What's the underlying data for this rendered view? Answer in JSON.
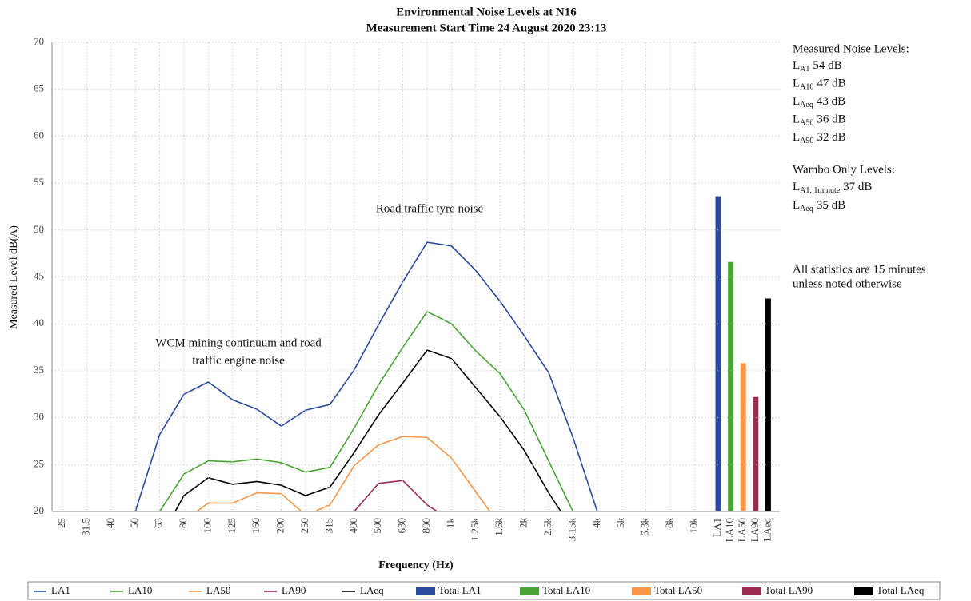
{
  "chart_data": {
    "type": "line",
    "title": [
      "Environmental Noise Levels at N16",
      "Measurement Start Time 24 August 2020 23:13"
    ],
    "x_label": "Frequency (Hz)",
    "y_label": "Measured Level dB(A)",
    "categories": [
      "25",
      "31.5",
      "40",
      "50",
      "63",
      "80",
      "100",
      "125",
      "160",
      "200",
      "250",
      "315",
      "400",
      "500",
      "630",
      "800",
      "1k",
      "1.25k",
      "1.6k",
      "2k",
      "2.5k",
      "3.15k",
      "4k",
      "5k",
      "6.3k",
      "8k",
      "10k",
      "LA1",
      "LA10",
      "LA50",
      "LA90",
      "LAeq"
    ],
    "ylim": [
      20,
      70
    ],
    "yticks": [
      20,
      25,
      30,
      35,
      40,
      45,
      50,
      55,
      60,
      65,
      70
    ],
    "grid": true,
    "legend": "bottom",
    "series": [
      {
        "name": "LA1",
        "kind": "line",
        "color": "#2a4a9e",
        "values": [
          null,
          null,
          null,
          20,
          28.2,
          32.5,
          33.8,
          31.9,
          30.9,
          29.1,
          30.8,
          31.4,
          35.1,
          39.9,
          44.5,
          48.7,
          48.3,
          45.7,
          42.4,
          38.7,
          34.8,
          27.9,
          20,
          null,
          null,
          null,
          null,
          null,
          null,
          null,
          null,
          null
        ]
      },
      {
        "name": "LA10",
        "kind": "line",
        "color": "#4aa335",
        "values": [
          null,
          null,
          null,
          null,
          20,
          24.0,
          25.4,
          25.3,
          25.6,
          25.2,
          24.2,
          24.7,
          28.9,
          33.5,
          37.5,
          41.3,
          40.0,
          37.1,
          34.7,
          30.8,
          25.4,
          20,
          null,
          null,
          null,
          null,
          null,
          null,
          null,
          null,
          null,
          null
        ]
      },
      {
        "name": "LA50",
        "kind": "line",
        "color": "#f79646",
        "values": [
          null,
          null,
          null,
          null,
          null,
          19,
          20.9,
          20.9,
          22.0,
          21.9,
          19.6,
          20.7,
          24.9,
          27.1,
          28.0,
          27.9,
          25.7,
          22.1,
          18.5,
          null,
          null,
          null,
          null,
          null,
          null,
          null,
          null,
          null,
          null,
          null,
          null,
          null
        ]
      },
      {
        "name": "LA90",
        "kind": "line",
        "color": "#9b2d4e",
        "values": [
          null,
          null,
          null,
          null,
          null,
          null,
          null,
          null,
          null,
          null,
          null,
          null,
          20,
          23.0,
          23.3,
          20.7,
          19,
          null,
          null,
          null,
          null,
          null,
          null,
          null,
          null,
          null,
          null,
          null,
          null,
          null,
          null,
          null
        ]
      },
      {
        "name": "LAeq",
        "kind": "line",
        "color": "#000000",
        "values": [
          null,
          null,
          null,
          null,
          17,
          21.7,
          23.6,
          22.9,
          23.2,
          22.8,
          21.7,
          22.6,
          26.3,
          30.3,
          33.7,
          37.2,
          36.3,
          33.2,
          30.1,
          26.5,
          22.0,
          18,
          null,
          null,
          null,
          null,
          null,
          null,
          null,
          null,
          null,
          null
        ]
      },
      {
        "name": "Total LA1",
        "kind": "bar",
        "color": "#2a4a9e",
        "values": [
          null,
          null,
          null,
          null,
          null,
          null,
          null,
          null,
          null,
          null,
          null,
          null,
          null,
          null,
          null,
          null,
          null,
          null,
          null,
          null,
          null,
          null,
          null,
          null,
          null,
          null,
          null,
          53.6,
          null,
          null,
          null,
          null
        ]
      },
      {
        "name": "Total LA10",
        "kind": "bar",
        "color": "#4aa335",
        "values": [
          null,
          null,
          null,
          null,
          null,
          null,
          null,
          null,
          null,
          null,
          null,
          null,
          null,
          null,
          null,
          null,
          null,
          null,
          null,
          null,
          null,
          null,
          null,
          null,
          null,
          null,
          null,
          null,
          46.6,
          null,
          null,
          null
        ]
      },
      {
        "name": "Total LA50",
        "kind": "bar",
        "color": "#f79646",
        "values": [
          null,
          null,
          null,
          null,
          null,
          null,
          null,
          null,
          null,
          null,
          null,
          null,
          null,
          null,
          null,
          null,
          null,
          null,
          null,
          null,
          null,
          null,
          null,
          null,
          null,
          null,
          null,
          null,
          null,
          35.8,
          null,
          null
        ]
      },
      {
        "name": "Total LA90",
        "kind": "bar",
        "color": "#9b2d4e",
        "values": [
          null,
          null,
          null,
          null,
          null,
          null,
          null,
          null,
          null,
          null,
          null,
          null,
          null,
          null,
          null,
          null,
          null,
          null,
          null,
          null,
          null,
          null,
          null,
          null,
          null,
          null,
          null,
          null,
          null,
          null,
          32.2,
          null
        ]
      },
      {
        "name": "Total LAeq",
        "kind": "bar",
        "color": "#000000",
        "values": [
          null,
          null,
          null,
          null,
          null,
          null,
          null,
          null,
          null,
          null,
          null,
          null,
          null,
          null,
          null,
          null,
          null,
          null,
          null,
          null,
          null,
          null,
          null,
          null,
          null,
          null,
          null,
          null,
          null,
          null,
          null,
          42.7
        ]
      }
    ],
    "annotations": [
      {
        "lines": [
          "Road traffic tyre noise"
        ]
      },
      {
        "lines": [
          "WCM mining continuum and road",
          "traffic engine noise"
        ]
      }
    ],
    "side_panel": {
      "measured_heading": "Measured Noise Levels:",
      "measured": [
        {
          "symbol": "L",
          "sub": "A1",
          "text": "54 dB"
        },
        {
          "symbol": "L",
          "sub": "A10",
          "text": "47 dB"
        },
        {
          "symbol": "L",
          "sub": "Aeq",
          "text": "43 dB"
        },
        {
          "symbol": "L",
          "sub": "A50",
          "text": "36 dB"
        },
        {
          "symbol": "L",
          "sub": "A90",
          "text": "32 dB"
        }
      ],
      "wambo_heading": "Wambo Only Levels:",
      "wambo": [
        {
          "symbol": "L",
          "sub": "A1, 1minute",
          "text": "37 dB"
        },
        {
          "symbol": "L",
          "sub": "Aeq",
          "text": "35 dB"
        }
      ],
      "note": [
        "All statistics are 15 minutes",
        "unless noted otherwise"
      ]
    }
  }
}
